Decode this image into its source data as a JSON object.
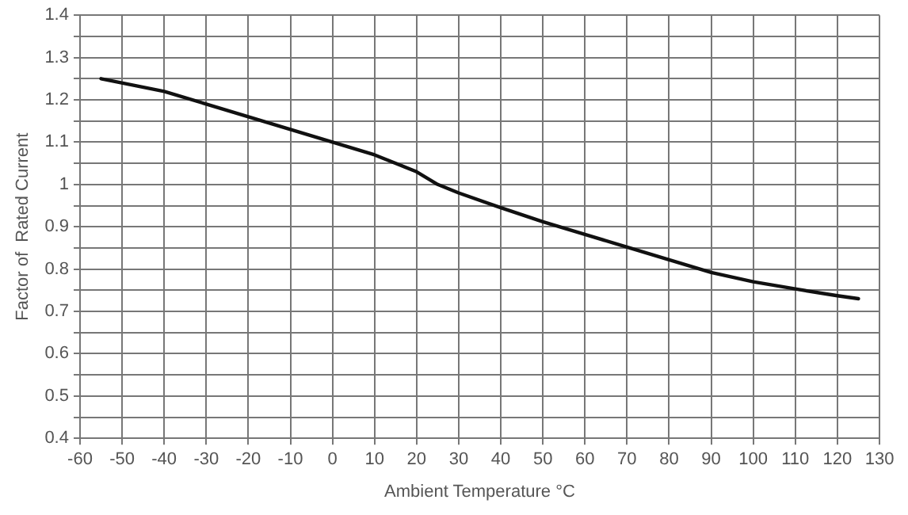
{
  "chart_data": {
    "type": "line",
    "xlabel": "Ambient Temperature °C",
    "ylabel": "Factor of  Rated Current",
    "x": [
      -55,
      -40,
      -30,
      -20,
      -10,
      0,
      10,
      20,
      25,
      30,
      40,
      50,
      60,
      70,
      80,
      90,
      100,
      110,
      120,
      125
    ],
    "series": [
      {
        "color": "#111111",
        "values": [
          1.25,
          1.22,
          1.19,
          1.16,
          1.13,
          1.1,
          1.07,
          1.03,
          1.0,
          0.98,
          0.945,
          0.912,
          0.882,
          0.852,
          0.822,
          0.792,
          0.77,
          0.753,
          0.737,
          0.73
        ]
      }
    ],
    "xlim": [
      -60,
      130
    ],
    "xticks": [
      -60,
      -50,
      -40,
      -30,
      -20,
      -10,
      0,
      10,
      20,
      30,
      40,
      50,
      60,
      70,
      80,
      90,
      100,
      110,
      120,
      130
    ],
    "ylim": [
      0.4,
      1.4
    ],
    "yticks": [
      0.4,
      {
        "value": 0.45,
        "label": null
      },
      0.5,
      {
        "value": 0.55,
        "label": null
      },
      0.6,
      {
        "value": 0.65,
        "label": null
      },
      0.7,
      {
        "value": 0.75,
        "label": null
      },
      0.8,
      {
        "value": 0.85,
        "label": null
      },
      0.9,
      {
        "value": 0.95,
        "label": null
      },
      1,
      {
        "value": 1.05,
        "label": null
      },
      1.1,
      {
        "value": 1.15,
        "label": null
      },
      1.2,
      {
        "value": 1.25,
        "label": null
      },
      1.3,
      {
        "value": 1.35,
        "label": null
      },
      1.4
    ],
    "grid": true,
    "legend": false,
    "marker": "none",
    "line_style": "solid"
  }
}
